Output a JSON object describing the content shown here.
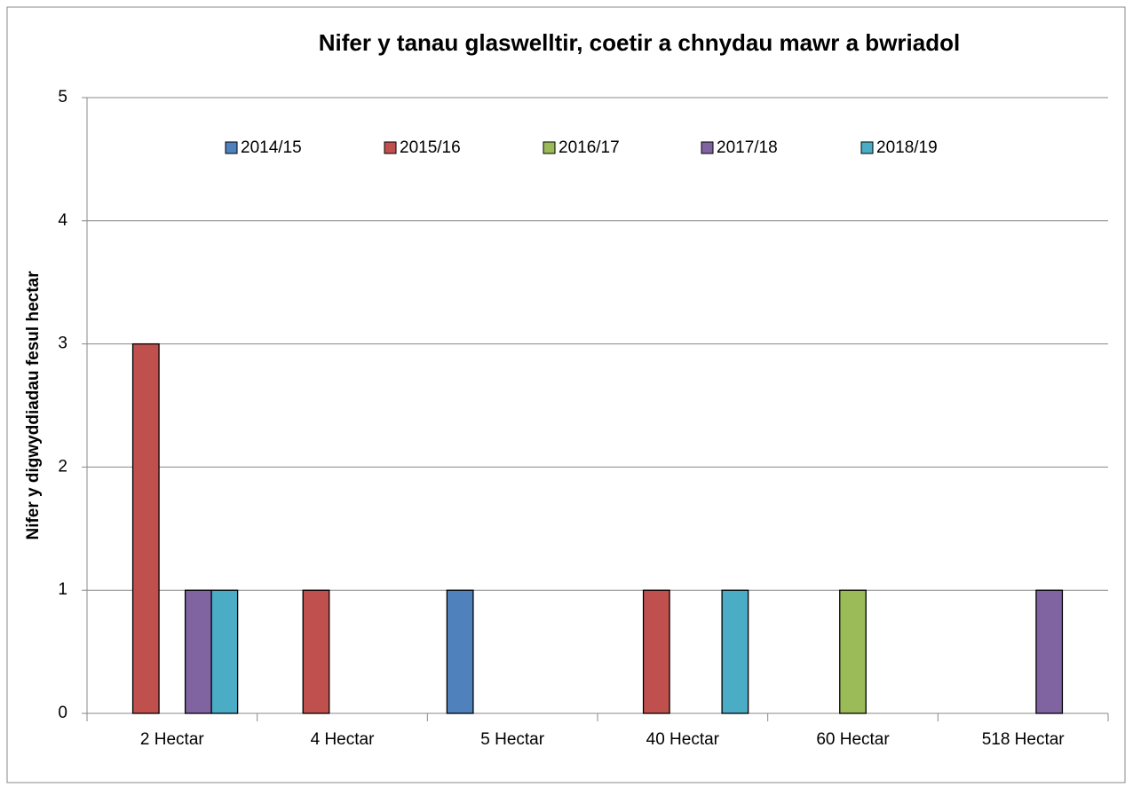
{
  "chart_data": {
    "type": "bar",
    "title": "Nifer y tanau glaswelltir, coetir a chnydau mawr a bwriadol",
    "y_label": "Nifer y digwyddiadau fesul hectar",
    "categories": [
      "2 Hectar",
      "4 Hectar",
      "5 Hectar",
      "40 Hectar",
      "60 Hectar",
      "518 Hectar"
    ],
    "series": [
      {
        "name": "2014/15",
        "color": "#4f81bd",
        "values": [
          0,
          0,
          1,
          0,
          0,
          0
        ]
      },
      {
        "name": "2015/16",
        "color": "#c0504d",
        "values": [
          3,
          1,
          0,
          1,
          0,
          0
        ]
      },
      {
        "name": "2016/17",
        "color": "#9bbb59",
        "values": [
          0,
          0,
          0,
          0,
          1,
          0
        ]
      },
      {
        "name": "2017/18",
        "color": "#8064a2",
        "values": [
          1,
          0,
          0,
          0,
          0,
          1
        ]
      },
      {
        "name": "2018/19",
        "color": "#4bacc6",
        "values": [
          1,
          0,
          0,
          1,
          0,
          0
        ]
      }
    ],
    "ylim": [
      0,
      5
    ],
    "yticks": [
      0,
      1,
      2,
      3,
      4,
      5
    ],
    "grid": true,
    "legend": "top"
  }
}
